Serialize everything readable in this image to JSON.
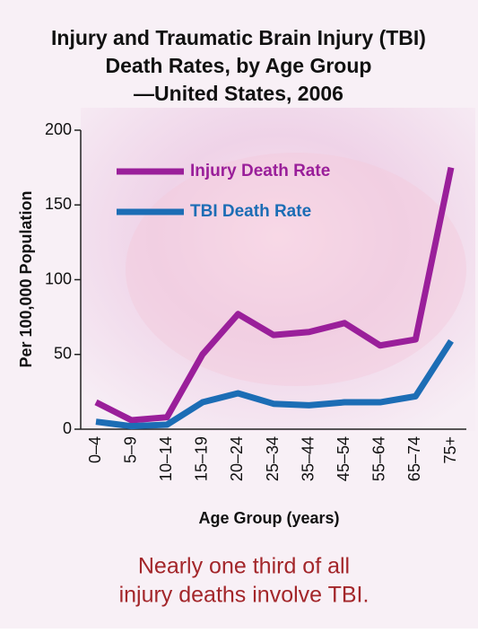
{
  "chart_data": {
    "type": "line",
    "title": [
      "Injury and Traumatic Brain Injury (TBI)",
      "Death Rates, by Age Group",
      "—United States, 2006"
    ],
    "x_label": "Age Group (years)",
    "y_label": "Per 100,000 Population",
    "categories": [
      "0–4",
      "5–9",
      "10–14",
      "15–19",
      "20–24",
      "25–34",
      "35–44",
      "45–54",
      "55–64",
      "65–74",
      "75+"
    ],
    "series": [
      {
        "name": "Injury Death Rate",
        "color": "#9a1f9a",
        "values": [
          18,
          6,
          8,
          50,
          77,
          63,
          65,
          71,
          56,
          60,
          175
        ]
      },
      {
        "name": "TBI Death Rate",
        "color": "#1c6db5",
        "values": [
          5,
          2,
          3,
          18,
          24,
          17,
          16,
          18,
          18,
          22,
          59
        ]
      }
    ],
    "ylim": [
      0,
      200
    ],
    "yticks": [
      0,
      50,
      100,
      150,
      200
    ],
    "caption": [
      "Nearly one third of all",
      "injury deaths involve TBI."
    ]
  }
}
